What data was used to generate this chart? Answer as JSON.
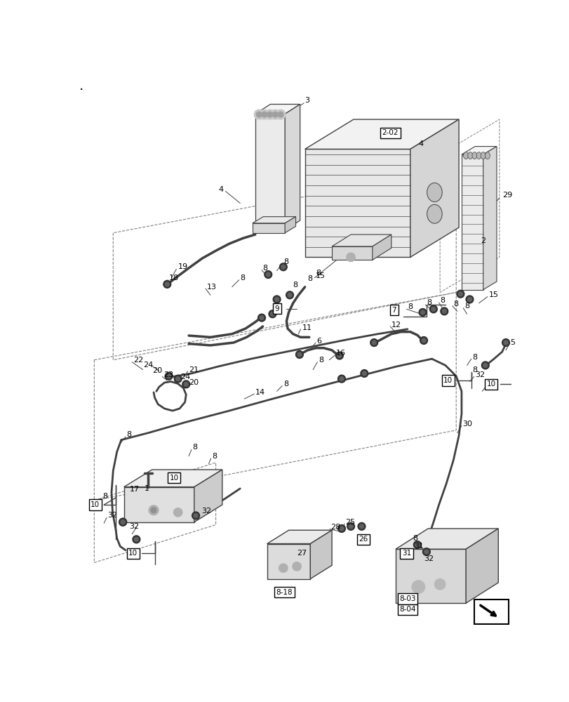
{
  "bg_color": "#ffffff",
  "fig_width": 8.12,
  "fig_height": 10.0,
  "dpi": 100,
  "line_color": "#404040",
  "dash_color": "#808080"
}
